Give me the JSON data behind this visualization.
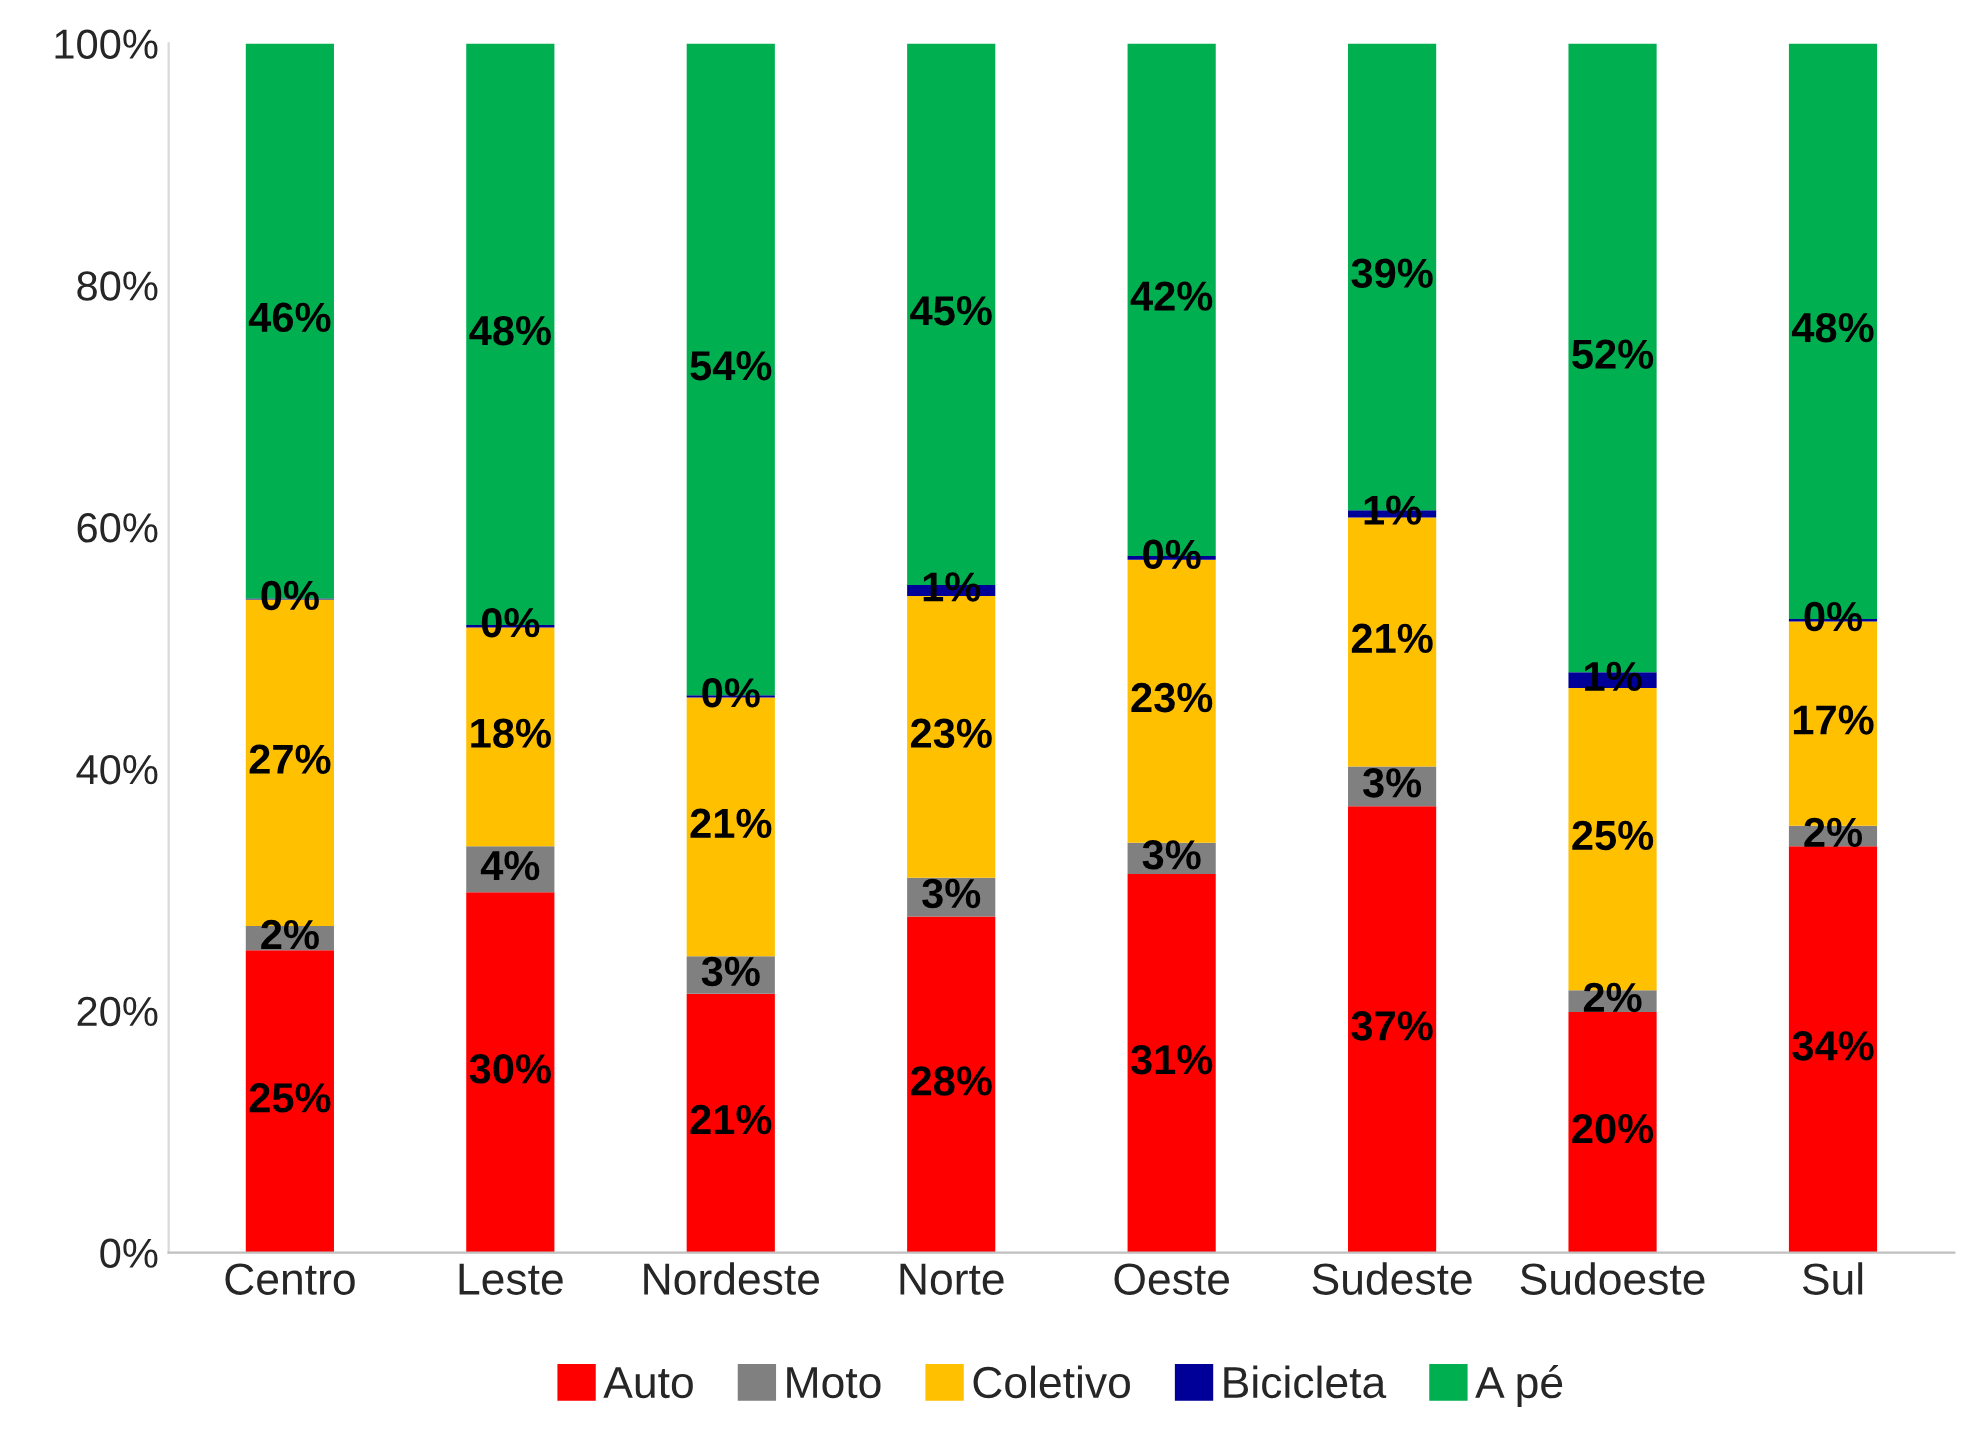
{
  "chart_data": {
    "type": "bar",
    "stacked": true,
    "categories": [
      "Centro",
      "Leste",
      "Nordeste",
      "Norte",
      "Oeste",
      "Sudeste",
      "Sudoeste",
      "Sul"
    ],
    "series": [
      {
        "name": "Auto",
        "color": "#ff0000",
        "values": [
          25,
          29.8,
          21.4,
          27.8,
          31.3,
          36.9,
          19.9,
          33.6
        ],
        "value_labels": [
          "25%",
          "30%",
          "21%",
          "28%",
          "31%",
          "37%",
          "20%",
          "34%"
        ]
      },
      {
        "name": "Moto",
        "color": "#808080",
        "values": [
          2,
          3.8,
          3.1,
          3.2,
          2.6,
          3.3,
          1.8,
          1.7
        ],
        "value_labels": [
          "2%",
          "4%",
          "3%",
          "3%",
          "3%",
          "3%",
          "2%",
          "2%"
        ]
      },
      {
        "name": "Coletivo",
        "color": "#ffc000",
        "values": [
          27,
          18.1,
          21.4,
          23.3,
          23.4,
          20.6,
          25,
          16.9
        ],
        "value_labels": [
          "27%",
          "18%",
          "21%",
          "23%",
          "23%",
          "21%",
          "25%",
          "17%"
        ]
      },
      {
        "name": "Bicicleta",
        "color": "#000099",
        "values": [
          0.1,
          0.2,
          0.2,
          0.9,
          0.3,
          0.6,
          1.3,
          0.2
        ],
        "value_labels": [
          "0%",
          "0%",
          "0%",
          "1%",
          "0%",
          "1%",
          "1%",
          "0%"
        ]
      },
      {
        "name": "A pé",
        "color": "#00b050",
        "values": [
          45.9,
          48.1,
          53.9,
          44.8,
          42.4,
          38.6,
          52,
          47.6
        ],
        "value_labels": [
          "46%",
          "48%",
          "54%",
          "45%",
          "42%",
          "39%",
          "52%",
          "48%"
        ]
      }
    ],
    "ylim": [
      0,
      100
    ],
    "yticks": [
      {
        "value": 0,
        "label": "0%"
      },
      {
        "value": 20,
        "label": "20%"
      },
      {
        "value": 40,
        "label": "40%"
      },
      {
        "value": 60,
        "label": "60%"
      },
      {
        "value": 80,
        "label": "80%"
      },
      {
        "value": 100,
        "label": "100%"
      }
    ],
    "grid": false,
    "legend": "bottom"
  }
}
